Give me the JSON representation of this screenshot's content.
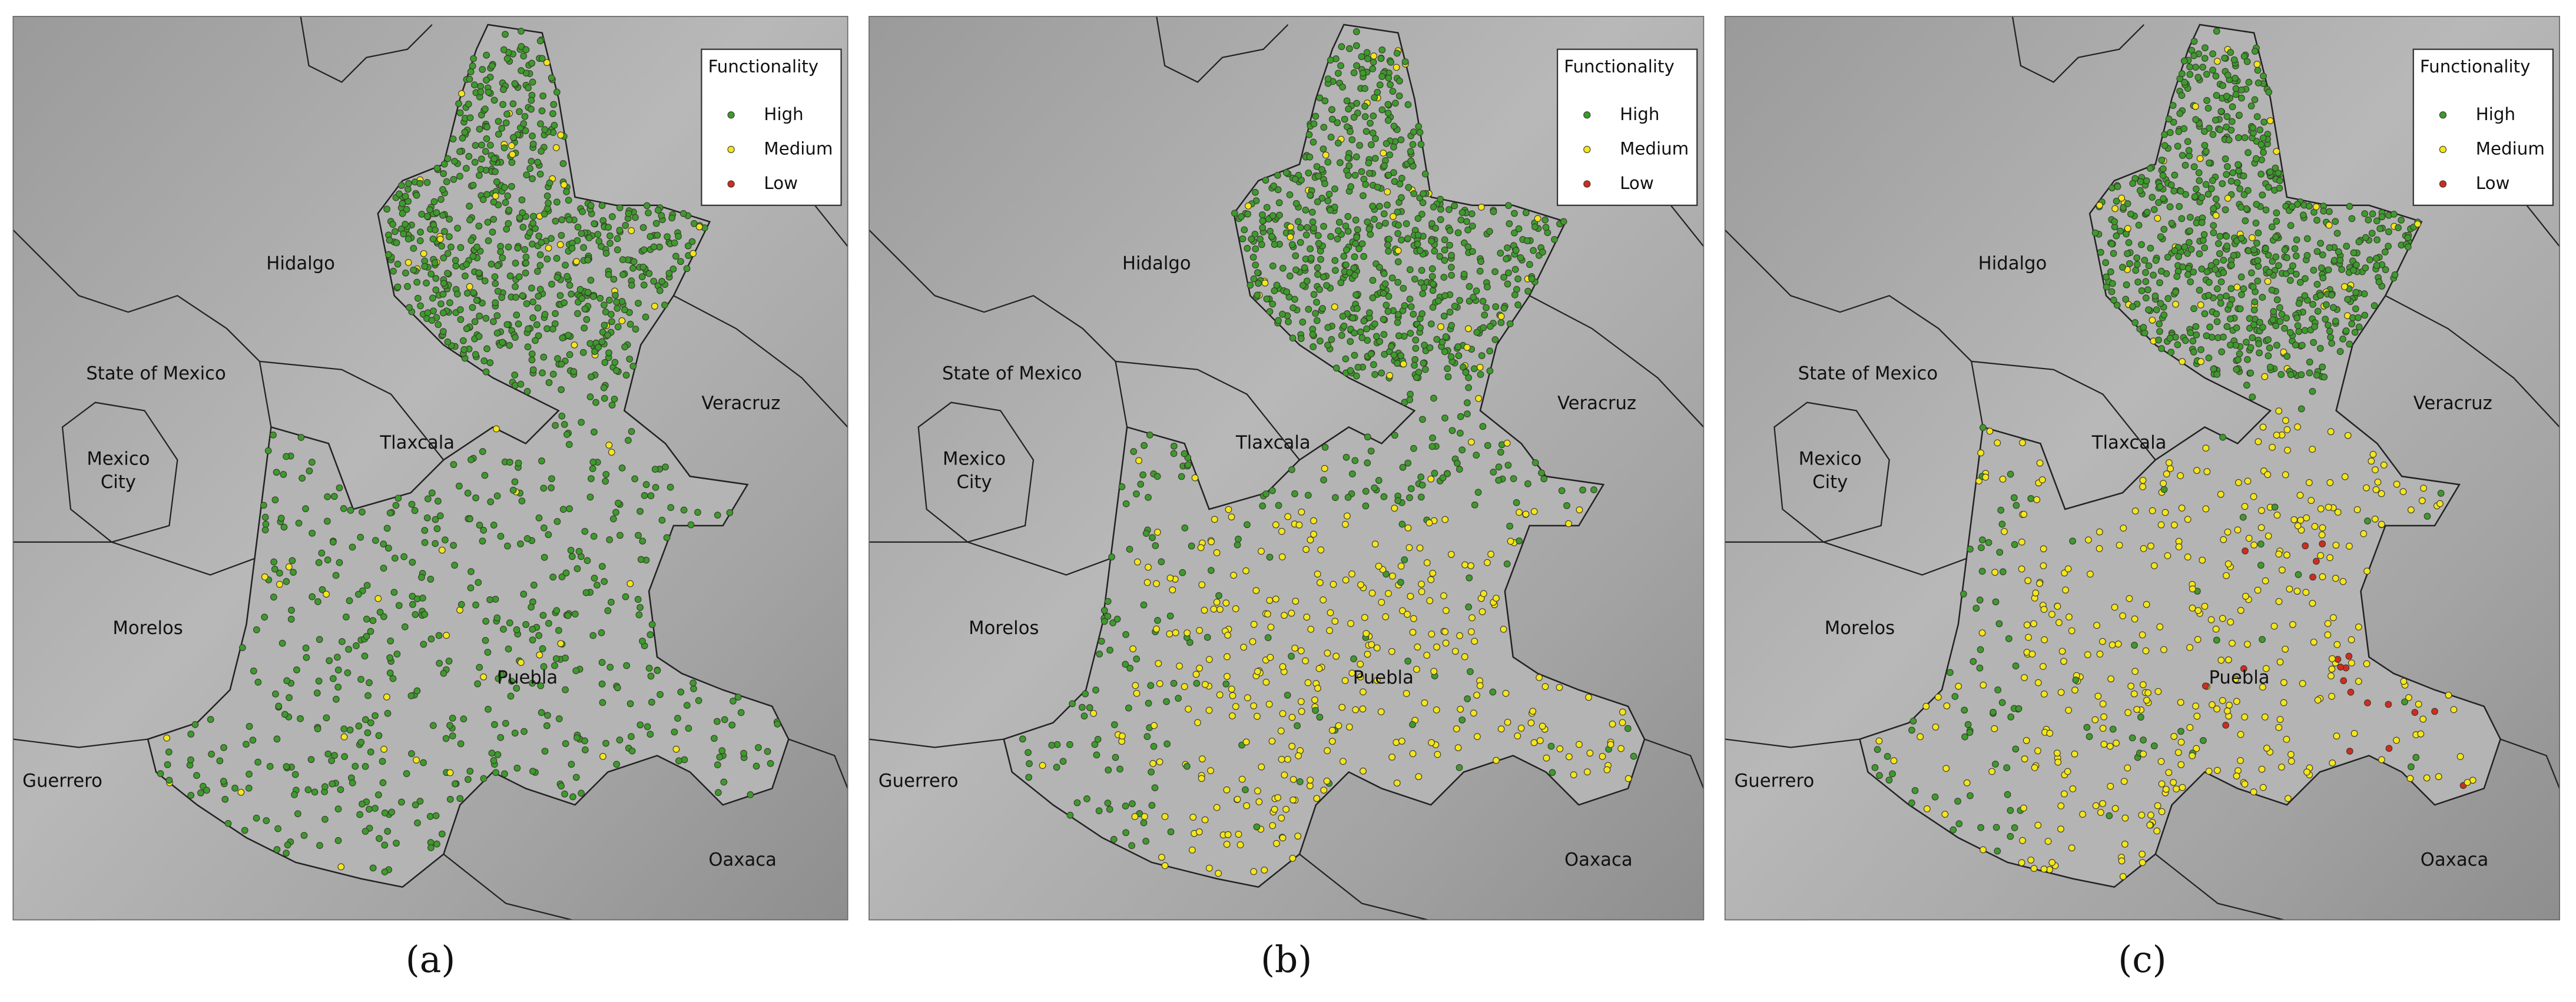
{
  "legend": {
    "title": "Functionality",
    "items": [
      {
        "label": "High",
        "color": "#3d9a2e"
      },
      {
        "label": "Medium",
        "color": "#f5e51c"
      },
      {
        "label": "Low",
        "color": "#d42a20"
      }
    ]
  },
  "regions": [
    {
      "name": "Hidalgo"
    },
    {
      "name": "State of Mexico"
    },
    {
      "name": [
        "Mexico",
        "City"
      ]
    },
    {
      "name": "Tlaxcala"
    },
    {
      "name": "Veracruz"
    },
    {
      "name": "Morelos"
    },
    {
      "name": "Puebla"
    },
    {
      "name": "Guerrero"
    },
    {
      "name": "Oaxaca"
    }
  ],
  "panels": [
    {
      "caption": "(a)"
    },
    {
      "caption": "(b)"
    },
    {
      "caption": "(c)"
    }
  ]
}
